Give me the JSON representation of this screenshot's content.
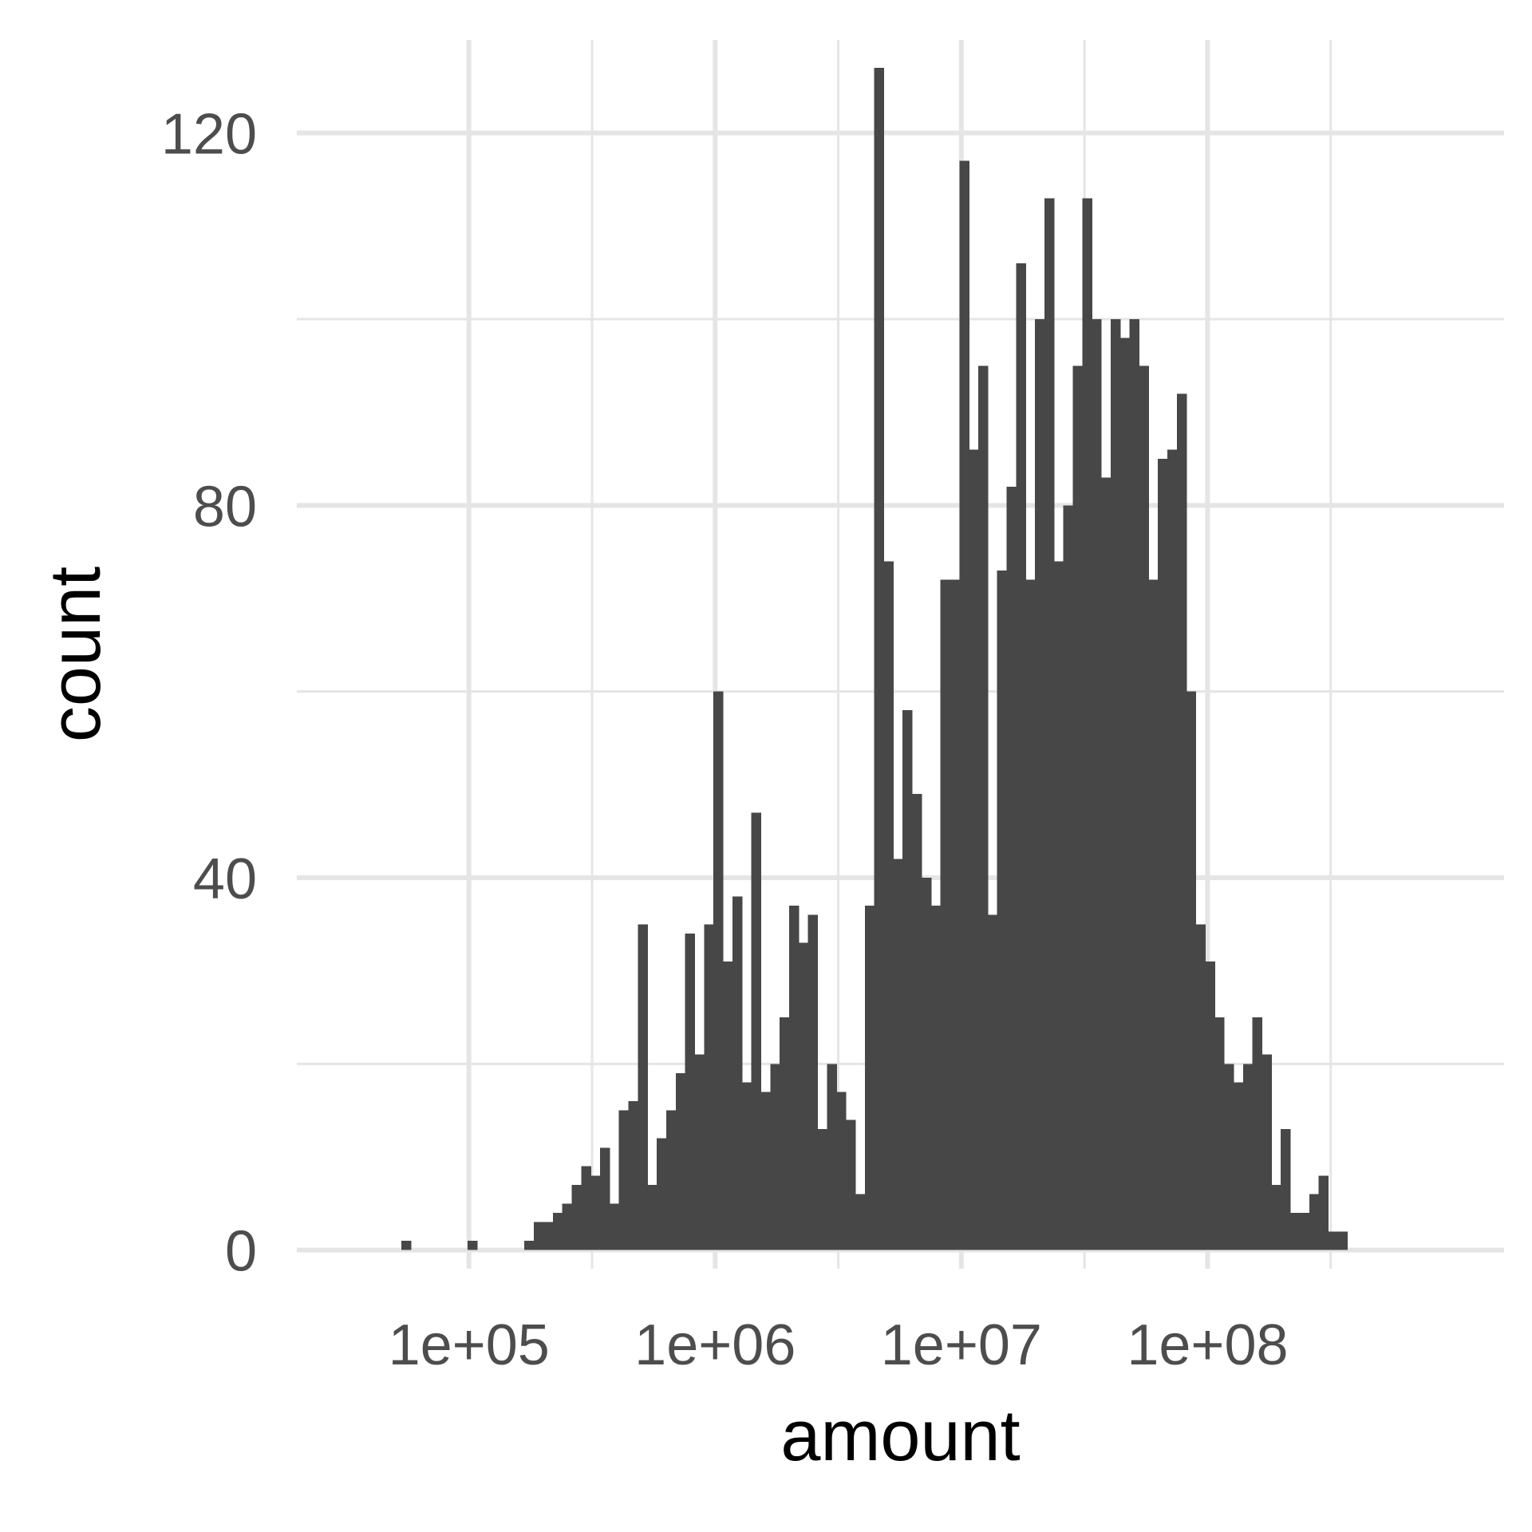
{
  "chart_data": {
    "type": "bar",
    "subtype": "histogram",
    "x_scale": "log10",
    "xlabel": "amount",
    "ylabel": "count",
    "xlim": [
      20000,
      1600000000
    ],
    "ylim": [
      -2,
      130
    ],
    "x_ticks": [
      {
        "value": 100000,
        "label": "1e+05"
      },
      {
        "value": 1000000,
        "label": "1e+06"
      },
      {
        "value": 10000000,
        "label": "1e+07"
      },
      {
        "value": 100000000,
        "label": "1e+08"
      }
    ],
    "x_minor_ticks": [
      316228,
      3162278,
      31622777,
      316227766
    ],
    "y_ticks": [
      {
        "value": 0,
        "label": "0"
      },
      {
        "value": 40,
        "label": "40"
      },
      {
        "value": 80,
        "label": "80"
      },
      {
        "value": 120,
        "label": "120"
      }
    ],
    "y_minor_ticks": [
      20,
      60,
      100
    ],
    "grid": true,
    "bar_color": "#474747",
    "log10_bin_start": 4.7262,
    "log10_bin_width": 0.0384,
    "counts": [
      1,
      0,
      0,
      0,
      0,
      0,
      0,
      1,
      0,
      0,
      0,
      0,
      0,
      1,
      3,
      3,
      4,
      5,
      7,
      9,
      8,
      11,
      5,
      15,
      16,
      35,
      7,
      12,
      15,
      19,
      34,
      21,
      35,
      60,
      31,
      38,
      18,
      47,
      17,
      20,
      25,
      37,
      33,
      36,
      13,
      20,
      17,
      14,
      6,
      37,
      127,
      74,
      42,
      58,
      49,
      40,
      37,
      72,
      72,
      117,
      86,
      95,
      36,
      73,
      82,
      106,
      72,
      100,
      113,
      74,
      80,
      95,
      113,
      100,
      83,
      100,
      98,
      100,
      95,
      72,
      85,
      86,
      92,
      60,
      35,
      31,
      25,
      20,
      18,
      20,
      25,
      21,
      7,
      13,
      4,
      4,
      6,
      8,
      2,
      2
    ]
  }
}
